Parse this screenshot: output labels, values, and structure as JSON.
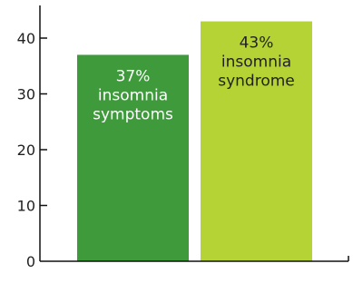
{
  "chart_data": {
    "type": "bar",
    "categories": [
      "symptoms",
      "syndrome"
    ],
    "values": [
      37,
      43
    ],
    "ylim": [
      0,
      45
    ],
    "yticks": [
      0,
      10,
      20,
      30,
      40
    ],
    "title": "",
    "xlabel": "",
    "ylabel": "",
    "grid": false,
    "legend": "none",
    "bar_labels": [
      [
        "37%",
        "insomnia",
        "symptoms"
      ],
      [
        "43%",
        "insomnia",
        "syndrome"
      ]
    ],
    "colors": {
      "bars": [
        "#3f9a3c",
        "#b5d334"
      ],
      "label_text": [
        "#ffffff",
        "#222222"
      ],
      "axis": "#111111",
      "tick_text": "#222222"
    }
  }
}
